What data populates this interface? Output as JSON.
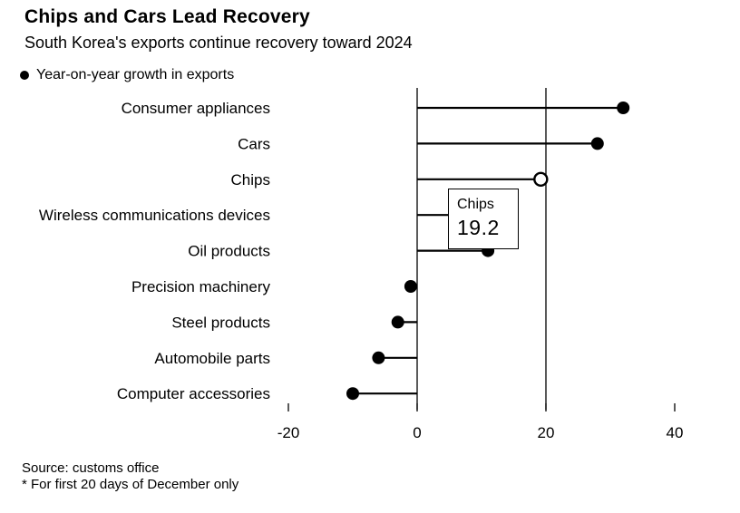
{
  "header": {
    "title": "Chips and Cars Lead Recovery",
    "subtitle": "South Korea's exports continue recovery toward 2024"
  },
  "legend": {
    "label": "Year-on-year growth in exports"
  },
  "tooltip": {
    "label": "Chips",
    "value": "19.2"
  },
  "footer": {
    "source": "Source: customs office",
    "note": "* For first 20 days of December only"
  },
  "chart_data": {
    "type": "bar",
    "orientation": "horizontal-lollipop",
    "title": "Chips and Cars Lead Recovery",
    "subtitle": "South Korea's exports continue recovery toward 2024",
    "legend_label": "Year-on-year growth in exports",
    "categories": [
      "Consumer appliances",
      "Cars",
      "Chips",
      "Wireless communications devices",
      "Oil products",
      "Precision machinery",
      "Steel products",
      "Automobile parts",
      "Computer accessories"
    ],
    "values": [
      32,
      28,
      19.2,
      13,
      11,
      -1,
      -3,
      -6,
      -10
    ],
    "highlight": {
      "category": "Chips",
      "value": 19.2,
      "style": "hollow-dot-with-tooltip"
    },
    "xlabel": "",
    "ylabel": "",
    "xlim": [
      -20,
      40
    ],
    "xticks": [
      -20,
      0,
      20,
      40
    ],
    "gridlines_x": [
      0,
      20
    ],
    "grid": "vertical-only",
    "colors": {
      "dot": "#000000",
      "line": "#000000",
      "axis": "#000000",
      "background": "#ffffff"
    }
  }
}
